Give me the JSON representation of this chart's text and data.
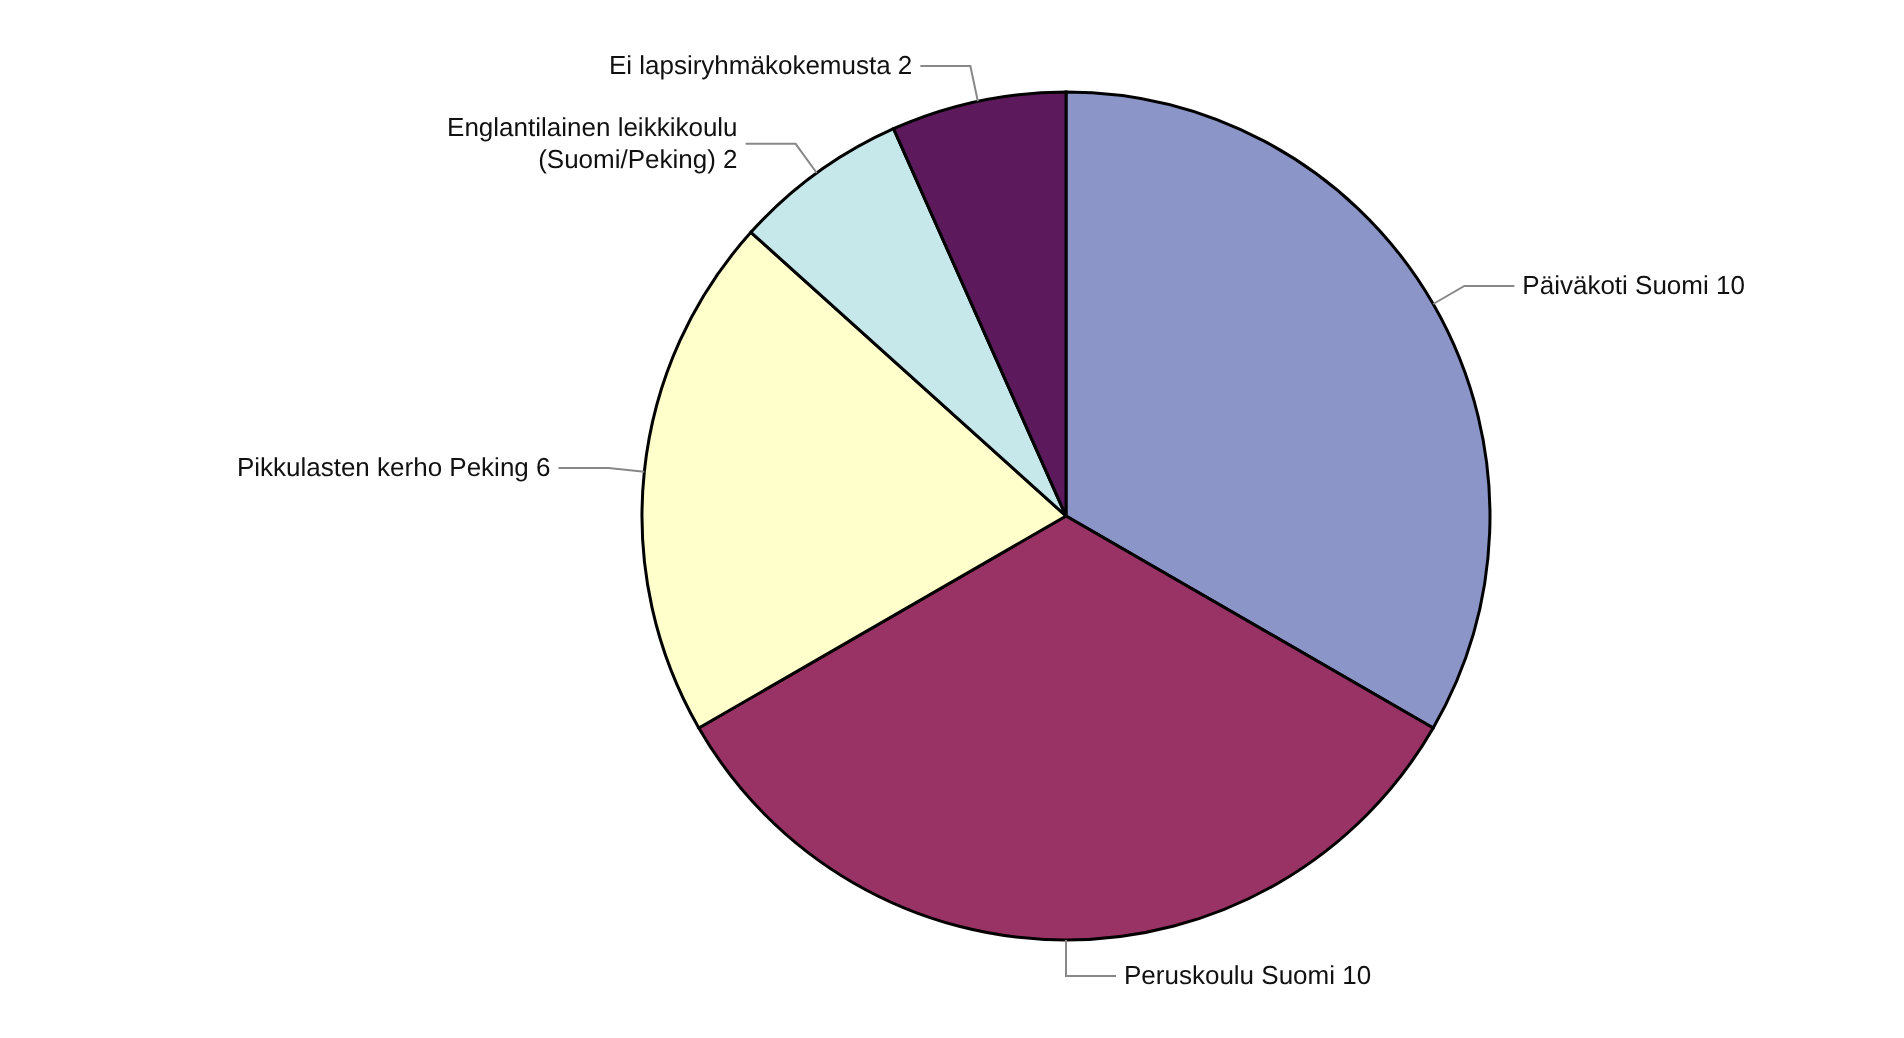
{
  "chart_data": {
    "type": "pie",
    "categories": [
      "Päiväkoti Suomi 10",
      "Peruskoulu Suomi 10",
      "Pikkulasten kerho Peking 6",
      "Englantilainen leikkikoulu (Suomi/Peking) 2",
      "Ei lapsiryhmäkokemusta 2"
    ],
    "values": [
      10,
      10,
      6,
      2,
      2
    ],
    "colors": [
      "#8c95c8",
      "#993366",
      "#ffffcc",
      "#c6e8ea",
      "#5c1a5c"
    ]
  }
}
